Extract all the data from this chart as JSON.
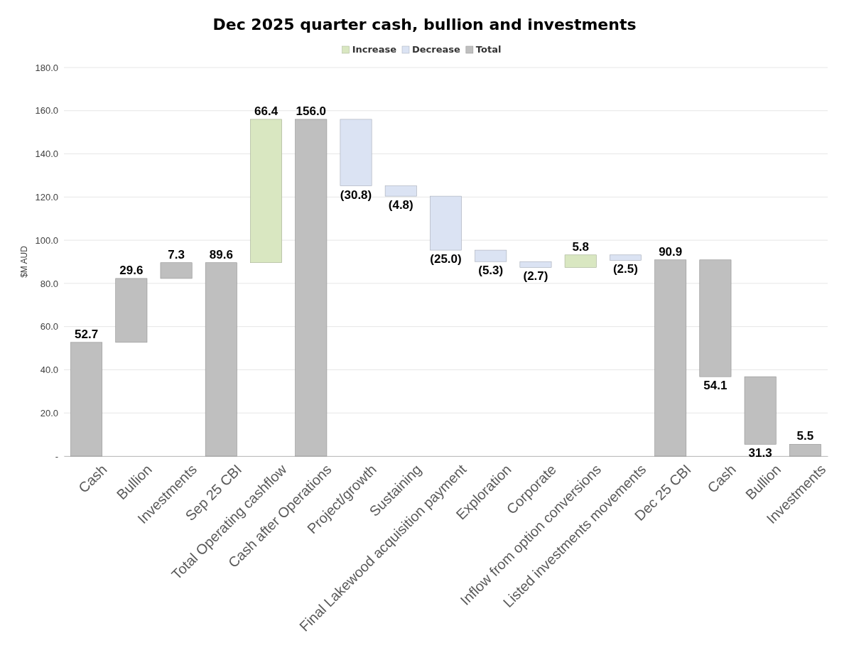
{
  "chart_data": {
    "type": "bar",
    "title": "Dec 2025 quarter cash, bullion and investments",
    "ylabel": "$M AUD",
    "categories": [
      "Cash",
      "Bullion",
      "Investments",
      "Sep 25 CBI",
      "Total Operating cashflow",
      "Cash after Operations",
      "Project/growth",
      "Sustaining",
      "Final Lakewood acquisition payment",
      "Exploration",
      "Corporate",
      "Inflow from option conversions",
      "Listed investments movements",
      "Dec 25 CBI",
      "Cash",
      "Bullion",
      "Investments"
    ],
    "series": [
      {
        "name": "Increase",
        "color": "#d9e7c1",
        "values": [
          null,
          null,
          null,
          null,
          66.4,
          null,
          null,
          null,
          null,
          null,
          null,
          5.8,
          null,
          null,
          null,
          null,
          null
        ],
        "base": [
          null,
          null,
          null,
          null,
          89.6,
          null,
          null,
          null,
          null,
          null,
          null,
          87.4,
          null,
          null,
          null,
          null,
          null
        ],
        "value_labels": [
          null,
          null,
          null,
          null,
          "66.4",
          null,
          null,
          null,
          null,
          null,
          null,
          "5.8",
          null,
          null,
          null,
          null,
          null
        ]
      },
      {
        "name": "Decrease",
        "color": "#dbe3f3",
        "values": [
          null,
          null,
          null,
          null,
          null,
          null,
          -30.8,
          -4.8,
          -25.0,
          -5.3,
          -2.7,
          null,
          -2.5,
          null,
          null,
          null,
          null
        ],
        "base": [
          null,
          null,
          null,
          null,
          null,
          null,
          156.0,
          125.2,
          120.4,
          95.4,
          90.1,
          null,
          93.2,
          null,
          null,
          null,
          null
        ],
        "value_labels": [
          null,
          null,
          null,
          null,
          null,
          null,
          "(30.8)",
          "(4.8)",
          "(25.0)",
          "(5.3)",
          "(2.7)",
          null,
          "(2.5)",
          null,
          null,
          null,
          null
        ]
      },
      {
        "name": "Total",
        "color": "#bfbfbf",
        "values": [
          52.7,
          29.6,
          7.3,
          89.6,
          null,
          156.0,
          null,
          null,
          null,
          null,
          null,
          null,
          null,
          90.9,
          54.1,
          31.3,
          5.5
        ],
        "base": [
          0,
          52.7,
          82.3,
          0,
          null,
          0,
          null,
          null,
          null,
          null,
          null,
          null,
          null,
          0,
          36.8,
          5.5,
          0
        ],
        "value_labels": [
          "52.7",
          "29.6",
          "7.3",
          "89.6",
          null,
          "156.0",
          null,
          null,
          null,
          null,
          null,
          null,
          null,
          "90.9",
          "54.1",
          "31.3",
          "5.5"
        ]
      }
    ],
    "ylim": [
      0,
      180
    ],
    "yticks": [
      {
        "value": 0,
        "label": "-"
      },
      {
        "value": 20,
        "label": "20.0"
      },
      {
        "value": 40,
        "label": "40.0"
      },
      {
        "value": 60,
        "label": "60.0"
      },
      {
        "value": 80,
        "label": "80.0"
      },
      {
        "value": 100,
        "label": "100.0"
      },
      {
        "value": 120,
        "label": "120.0"
      },
      {
        "value": 140,
        "label": "140.0"
      },
      {
        "value": 160,
        "label": "160.0"
      },
      {
        "value": 180,
        "label": "180.0"
      }
    ],
    "grid": "y",
    "legend": "top"
  }
}
